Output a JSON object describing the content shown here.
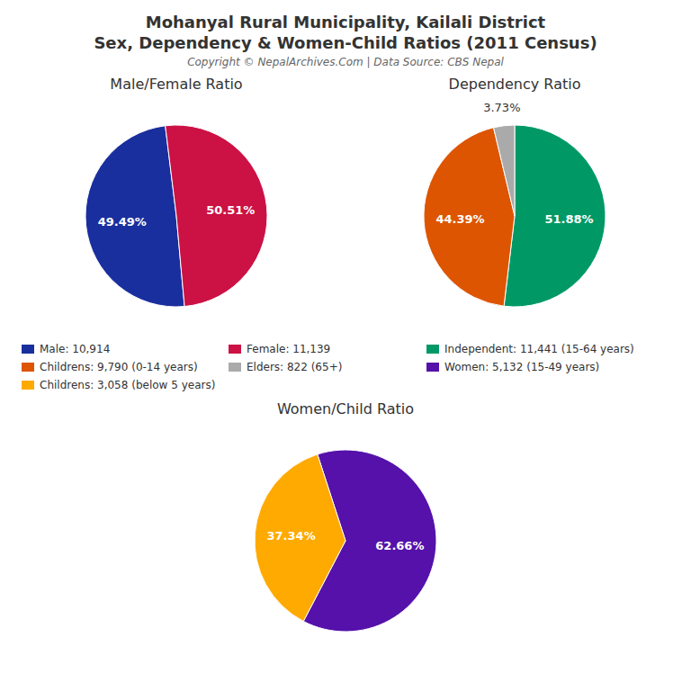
{
  "title": "Mohanyal Rural Municipality, Kailali District",
  "subtitle": "Sex, Dependency & Women-Child Ratios (2011 Census)",
  "annotations": [
    "Copyright © NepalArchives.Com | Data Source: CBS Nepal"
  ],
  "chart_data": [
    {
      "type": "pie",
      "title": "Male/Female Ratio",
      "categories": [
        "Male: 10,914",
        "Female: 11,139"
      ],
      "values": [
        49.49,
        50.51
      ],
      "value_labels": [
        "49.49%",
        "50.51%"
      ],
      "colors": [
        "#1a2f9e",
        "#cc1144"
      ],
      "data_labels": true,
      "legend": "bottom"
    },
    {
      "type": "pie",
      "title": "Dependency Ratio",
      "categories": [
        "Independent: 11,441 (15-64 years)",
        "Childrens: 9,790 (0-14 years)",
        "Elders: 822 (65+)"
      ],
      "values": [
        51.88,
        44.39,
        3.73
      ],
      "value_labels": [
        "51.88%",
        "44.39%",
        "3.73%"
      ],
      "colors": [
        "#009966",
        "#dd5500",
        "#aaaaaa"
      ],
      "data_labels": true,
      "legend": "bottom"
    },
    {
      "type": "pie",
      "title": "Women/Child Ratio",
      "categories": [
        "Women: 5,132 (15-49 years)",
        "Childrens: 3,058 (below 5 years)"
      ],
      "values": [
        62.66,
        37.34
      ],
      "value_labels": [
        "62.66%",
        "37.34%"
      ],
      "colors": [
        "#5511aa",
        "#ffaa00"
      ],
      "data_labels": true,
      "legend": "top"
    }
  ]
}
